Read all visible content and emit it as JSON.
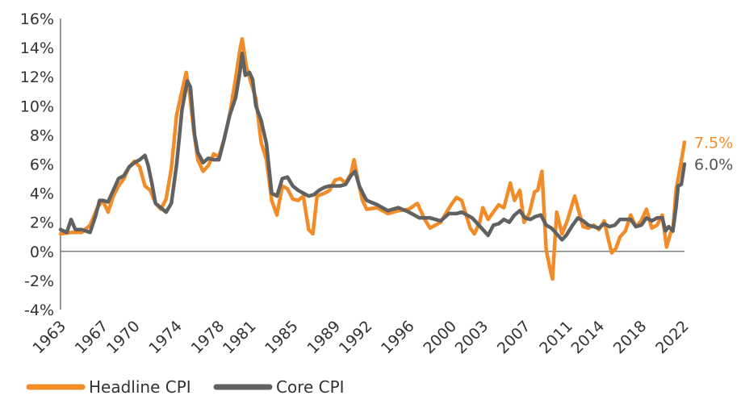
{
  "chart_data": {
    "type": "line",
    "title": "",
    "xlabel": "",
    "ylabel": "",
    "xlim": [
      1963,
      2022.1
    ],
    "ylim": [
      -4,
      16
    ],
    "y_ticks": [
      -4,
      -2,
      0,
      2,
      4,
      6,
      8,
      10,
      12,
      14,
      16
    ],
    "y_tick_labels": [
      "-4%",
      "-2%",
      "0%",
      "2%",
      "4%",
      "6%",
      "8%",
      "10%",
      "12%",
      "14%",
      "16%"
    ],
    "x_ticks": [
      1963,
      1967,
      1970,
      1974,
      1978,
      1981,
      1985,
      1989,
      1992,
      1996,
      2000,
      2003,
      2007,
      2011,
      2014,
      2018,
      2022
    ],
    "x_tick_labels": [
      "1963",
      "1967",
      "1970",
      "1974",
      "1978",
      "1981",
      "1985",
      "1989",
      "1992",
      "1996",
      "2000",
      "2003",
      "2007",
      "2011",
      "2014",
      "2018",
      "2022"
    ],
    "legend_position": "bottom-left",
    "series": [
      {
        "name": "Headline CPI",
        "color": "#F28C28",
        "end_label": "7.5%",
        "points": [
          [
            1963.0,
            1.2
          ],
          [
            1964.0,
            1.3
          ],
          [
            1965.0,
            1.3
          ],
          [
            1965.8,
            1.8
          ],
          [
            1966.5,
            3.0
          ],
          [
            1967.0,
            3.5
          ],
          [
            1967.5,
            2.7
          ],
          [
            1968.0,
            3.8
          ],
          [
            1968.5,
            4.5
          ],
          [
            1969.0,
            5.0
          ],
          [
            1969.5,
            5.8
          ],
          [
            1970.0,
            6.2
          ],
          [
            1970.5,
            5.8
          ],
          [
            1971.0,
            4.5
          ],
          [
            1971.5,
            4.2
          ],
          [
            1972.0,
            3.3
          ],
          [
            1972.5,
            2.9
          ],
          [
            1973.0,
            3.6
          ],
          [
            1973.5,
            5.7
          ],
          [
            1974.0,
            9.4
          ],
          [
            1974.5,
            11.0
          ],
          [
            1974.9,
            12.3
          ],
          [
            1975.2,
            11.0
          ],
          [
            1975.6,
            8.4
          ],
          [
            1976.0,
            6.3
          ],
          [
            1976.5,
            5.5
          ],
          [
            1977.0,
            5.9
          ],
          [
            1977.5,
            6.7
          ],
          [
            1978.0,
            6.5
          ],
          [
            1978.5,
            7.7
          ],
          [
            1979.0,
            9.3
          ],
          [
            1979.5,
            11.5
          ],
          [
            1980.0,
            13.9
          ],
          [
            1980.2,
            14.6
          ],
          [
            1980.6,
            12.7
          ],
          [
            1981.0,
            11.7
          ],
          [
            1981.5,
            10.5
          ],
          [
            1982.0,
            7.5
          ],
          [
            1982.5,
            6.3
          ],
          [
            1983.0,
            3.5
          ],
          [
            1983.5,
            2.5
          ],
          [
            1984.0,
            4.5
          ],
          [
            1984.5,
            4.3
          ],
          [
            1985.0,
            3.6
          ],
          [
            1985.5,
            3.5
          ],
          [
            1986.0,
            3.8
          ],
          [
            1986.5,
            1.5
          ],
          [
            1986.9,
            1.2
          ],
          [
            1987.3,
            3.8
          ],
          [
            1988.0,
            4.0
          ],
          [
            1988.5,
            4.2
          ],
          [
            1989.0,
            4.9
          ],
          [
            1989.5,
            5.0
          ],
          [
            1990.0,
            4.7
          ],
          [
            1990.5,
            5.3
          ],
          [
            1990.8,
            6.3
          ],
          [
            1991.2,
            4.8
          ],
          [
            1991.6,
            3.5
          ],
          [
            1992.0,
            2.9
          ],
          [
            1993.0,
            3.0
          ],
          [
            1994.0,
            2.6
          ],
          [
            1995.0,
            2.8
          ],
          [
            1996.0,
            2.9
          ],
          [
            1996.8,
            3.3
          ],
          [
            1997.5,
            2.2
          ],
          [
            1998.0,
            1.6
          ],
          [
            1999.0,
            2.0
          ],
          [
            2000.0,
            3.2
          ],
          [
            2000.5,
            3.7
          ],
          [
            2001.0,
            3.5
          ],
          [
            2001.8,
            1.6
          ],
          [
            2002.2,
            1.2
          ],
          [
            2002.7,
            2.0
          ],
          [
            2003.0,
            3.0
          ],
          [
            2003.5,
            2.2
          ],
          [
            2004.0,
            2.7
          ],
          [
            2004.5,
            3.2
          ],
          [
            2005.0,
            3.0
          ],
          [
            2005.6,
            4.7
          ],
          [
            2006.0,
            3.5
          ],
          [
            2006.5,
            4.2
          ],
          [
            2006.9,
            2.0
          ],
          [
            2007.4,
            2.6
          ],
          [
            2007.9,
            4.1
          ],
          [
            2008.2,
            4.2
          ],
          [
            2008.6,
            5.5
          ],
          [
            2009.0,
            0.1
          ],
          [
            2009.4,
            -1.3
          ],
          [
            2009.6,
            -1.9
          ],
          [
            2010.0,
            2.7
          ],
          [
            2010.5,
            1.2
          ],
          [
            2011.0,
            2.1
          ],
          [
            2011.7,
            3.8
          ],
          [
            2012.0,
            3.0
          ],
          [
            2012.5,
            1.7
          ],
          [
            2013.0,
            1.6
          ],
          [
            2013.5,
            1.8
          ],
          [
            2014.0,
            1.5
          ],
          [
            2014.5,
            2.1
          ],
          [
            2014.9,
            0.8
          ],
          [
            2015.2,
            -0.1
          ],
          [
            2015.6,
            0.2
          ],
          [
            2016.0,
            1.0
          ],
          [
            2016.5,
            1.4
          ],
          [
            2017.0,
            2.5
          ],
          [
            2017.5,
            1.7
          ],
          [
            2018.0,
            2.1
          ],
          [
            2018.5,
            2.9
          ],
          [
            2019.0,
            1.6
          ],
          [
            2019.5,
            1.8
          ],
          [
            2020.0,
            2.5
          ],
          [
            2020.4,
            0.3
          ],
          [
            2020.8,
            1.3
          ],
          [
            2021.0,
            1.4
          ],
          [
            2021.3,
            4.2
          ],
          [
            2021.6,
            5.4
          ],
          [
            2021.8,
            6.2
          ],
          [
            2022.1,
            7.5
          ]
        ]
      },
      {
        "name": "Core CPI",
        "color": "#616161",
        "end_label": "6.0%",
        "points": [
          [
            1963.0,
            1.5
          ],
          [
            1963.6,
            1.3
          ],
          [
            1964.0,
            2.2
          ],
          [
            1964.4,
            1.5
          ],
          [
            1965.0,
            1.5
          ],
          [
            1965.8,
            1.3
          ],
          [
            1966.3,
            2.4
          ],
          [
            1966.7,
            3.5
          ],
          [
            1967.0,
            3.5
          ],
          [
            1967.5,
            3.4
          ],
          [
            1968.0,
            4.2
          ],
          [
            1968.5,
            5.0
          ],
          [
            1969.0,
            5.2
          ],
          [
            1969.5,
            5.8
          ],
          [
            1970.0,
            6.1
          ],
          [
            1970.5,
            6.3
          ],
          [
            1971.0,
            6.6
          ],
          [
            1971.3,
            5.9
          ],
          [
            1971.7,
            4.5
          ],
          [
            1972.0,
            3.3
          ],
          [
            1972.5,
            3.0
          ],
          [
            1973.0,
            2.7
          ],
          [
            1973.5,
            3.3
          ],
          [
            1974.0,
            6.0
          ],
          [
            1974.5,
            9.7
          ],
          [
            1975.0,
            11.7
          ],
          [
            1975.3,
            11.3
          ],
          [
            1975.7,
            8.0
          ],
          [
            1976.0,
            6.8
          ],
          [
            1976.5,
            6.1
          ],
          [
            1977.0,
            6.4
          ],
          [
            1977.5,
            6.3
          ],
          [
            1978.0,
            6.3
          ],
          [
            1978.5,
            7.7
          ],
          [
            1979.0,
            9.3
          ],
          [
            1979.6,
            10.6
          ],
          [
            1980.0,
            12.4
          ],
          [
            1980.2,
            13.6
          ],
          [
            1980.5,
            12.1
          ],
          [
            1980.9,
            12.3
          ],
          [
            1981.2,
            11.8
          ],
          [
            1981.5,
            10.0
          ],
          [
            1982.0,
            9.0
          ],
          [
            1982.5,
            7.4
          ],
          [
            1983.0,
            4.0
          ],
          [
            1983.5,
            3.8
          ],
          [
            1984.0,
            5.0
          ],
          [
            1984.5,
            5.1
          ],
          [
            1985.0,
            4.5
          ],
          [
            1985.5,
            4.2
          ],
          [
            1986.0,
            4.0
          ],
          [
            1986.5,
            3.8
          ],
          [
            1987.0,
            3.9
          ],
          [
            1987.5,
            4.2
          ],
          [
            1988.0,
            4.4
          ],
          [
            1988.5,
            4.5
          ],
          [
            1989.0,
            4.5
          ],
          [
            1989.5,
            4.5
          ],
          [
            1990.0,
            4.6
          ],
          [
            1990.5,
            5.2
          ],
          [
            1990.9,
            5.5
          ],
          [
            1991.3,
            4.5
          ],
          [
            1991.7,
            3.9
          ],
          [
            1992.0,
            3.5
          ],
          [
            1993.0,
            3.2
          ],
          [
            1994.0,
            2.8
          ],
          [
            1995.0,
            3.0
          ],
          [
            1996.0,
            2.7
          ],
          [
            1997.0,
            2.3
          ],
          [
            1998.0,
            2.3
          ],
          [
            1999.0,
            2.1
          ],
          [
            1999.8,
            2.6
          ],
          [
            2000.5,
            2.6
          ],
          [
            2001.0,
            2.7
          ],
          [
            2002.0,
            2.3
          ],
          [
            2003.0,
            1.5
          ],
          [
            2003.5,
            1.1
          ],
          [
            2004.0,
            1.8
          ],
          [
            2004.5,
            1.9
          ],
          [
            2005.0,
            2.2
          ],
          [
            2005.5,
            2.0
          ],
          [
            2006.0,
            2.5
          ],
          [
            2006.5,
            2.8
          ],
          [
            2007.0,
            2.3
          ],
          [
            2007.5,
            2.2
          ],
          [
            2008.0,
            2.4
          ],
          [
            2008.5,
            2.5
          ],
          [
            2009.0,
            1.8
          ],
          [
            2009.5,
            1.6
          ],
          [
            2010.0,
            1.2
          ],
          [
            2010.5,
            0.8
          ],
          [
            2010.9,
            1.1
          ],
          [
            2011.5,
            1.8
          ],
          [
            2012.0,
            2.3
          ],
          [
            2012.5,
            2.1
          ],
          [
            2013.0,
            1.8
          ],
          [
            2013.5,
            1.7
          ],
          [
            2014.0,
            1.6
          ],
          [
            2014.5,
            1.9
          ],
          [
            2015.0,
            1.7
          ],
          [
            2015.5,
            1.8
          ],
          [
            2016.0,
            2.2
          ],
          [
            2016.5,
            2.2
          ],
          [
            2017.0,
            2.2
          ],
          [
            2017.5,
            1.7
          ],
          [
            2018.0,
            1.8
          ],
          [
            2018.5,
            2.3
          ],
          [
            2019.0,
            2.1
          ],
          [
            2019.5,
            2.3
          ],
          [
            2020.0,
            2.3
          ],
          [
            2020.3,
            1.4
          ],
          [
            2020.6,
            1.7
          ],
          [
            2021.0,
            1.4
          ],
          [
            2021.3,
            3.0
          ],
          [
            2021.5,
            4.5
          ],
          [
            2021.8,
            4.6
          ],
          [
            2022.1,
            6.0
          ]
        ]
      }
    ]
  }
}
